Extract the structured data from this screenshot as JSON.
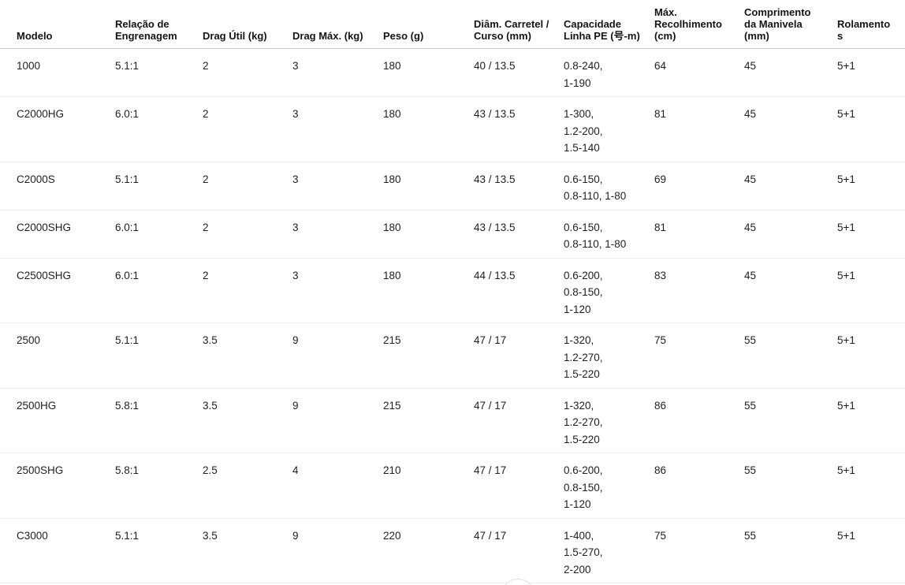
{
  "page": {
    "background": "#ffffff",
    "text_color": "#1f1f1f",
    "header_border_color": "#c9c9c9",
    "row_border_color": "#eeeeee"
  },
  "table": {
    "columns": [
      {
        "id": "model",
        "label": "Modelo"
      },
      {
        "id": "gear_ratio",
        "label": "Relação de Engrenagem"
      },
      {
        "id": "drag_util",
        "label": "Drag Útil (kg)"
      },
      {
        "id": "drag_max",
        "label": "Drag Máx. (kg)"
      },
      {
        "id": "weight",
        "label": "Peso (g)"
      },
      {
        "id": "spool",
        "label": "Diâm. Carretel / Curso (mm)"
      },
      {
        "id": "pe_capacity",
        "label": "Capacidade Linha PE (号-m)"
      },
      {
        "id": "retrieve",
        "label": "Máx. Recolhimento (cm)"
      },
      {
        "id": "handle",
        "label": "Comprimento da Manivela (mm)"
      },
      {
        "id": "bearings",
        "label": "Rolamentos"
      }
    ],
    "rows": [
      {
        "model": "1000",
        "gear_ratio": "5.1:1",
        "drag_util": "2",
        "drag_max": "3",
        "weight": "180",
        "spool": "40 / 13.5",
        "pe_capacity": [
          "0.8-240,",
          "1-190"
        ],
        "retrieve": "64",
        "handle": "45",
        "bearings": "5+1"
      },
      {
        "model": "C2000HG",
        "gear_ratio": "6.0:1",
        "drag_util": "2",
        "drag_max": "3",
        "weight": "180",
        "spool": "43 / 13.5",
        "pe_capacity": [
          "1-300,",
          "1.2-200,",
          "1.5-140"
        ],
        "retrieve": "81",
        "handle": "45",
        "bearings": "5+1"
      },
      {
        "model": "C2000S",
        "gear_ratio": "5.1:1",
        "drag_util": "2",
        "drag_max": "3",
        "weight": "180",
        "spool": "43 / 13.5",
        "pe_capacity": [
          "0.6-150,",
          "0.8-110, 1-80"
        ],
        "retrieve": "69",
        "handle": "45",
        "bearings": "5+1"
      },
      {
        "model": "C2000SHG",
        "gear_ratio": "6.0:1",
        "drag_util": "2",
        "drag_max": "3",
        "weight": "180",
        "spool": "43 / 13.5",
        "pe_capacity": [
          "0.6-150,",
          "0.8-110, 1-80"
        ],
        "retrieve": "81",
        "handle": "45",
        "bearings": "5+1"
      },
      {
        "model": "C2500SHG",
        "gear_ratio": "6.0:1",
        "drag_util": "2",
        "drag_max": "3",
        "weight": "180",
        "spool": "44 / 13.5",
        "pe_capacity": [
          "0.6-200,",
          "0.8-150,",
          "1-120"
        ],
        "retrieve": "83",
        "handle": "45",
        "bearings": "5+1"
      },
      {
        "model": "2500",
        "gear_ratio": "5.1:1",
        "drag_util": "3.5",
        "drag_max": "9",
        "weight": "215",
        "spool": "47 / 17",
        "pe_capacity": [
          "1-320,",
          "1.2-270,",
          "1.5-220"
        ],
        "retrieve": "75",
        "handle": "55",
        "bearings": "5+1"
      },
      {
        "model": "2500HG",
        "gear_ratio": "5.8:1",
        "drag_util": "3.5",
        "drag_max": "9",
        "weight": "215",
        "spool": "47 / 17",
        "pe_capacity": [
          "1-320,",
          "1.2-270,",
          "1.5-220"
        ],
        "retrieve": "86",
        "handle": "55",
        "bearings": "5+1"
      },
      {
        "model": "2500SHG",
        "gear_ratio": "5.8:1",
        "drag_util": "2.5",
        "drag_max": "4",
        "weight": "210",
        "spool": "47 / 17",
        "pe_capacity": [
          "0.6-200,",
          "0.8-150,",
          "1-120"
        ],
        "retrieve": "86",
        "handle": "55",
        "bearings": "5+1"
      },
      {
        "model": "C3000",
        "gear_ratio": "5.1:1",
        "drag_util": "3.5",
        "drag_max": "9",
        "weight": "220",
        "spool": "47 / 17",
        "pe_capacity": [
          "1-400,",
          "1.5-270,",
          "2-200"
        ],
        "retrieve": "75",
        "handle": "55",
        "bearings": "5+1"
      }
    ]
  }
}
